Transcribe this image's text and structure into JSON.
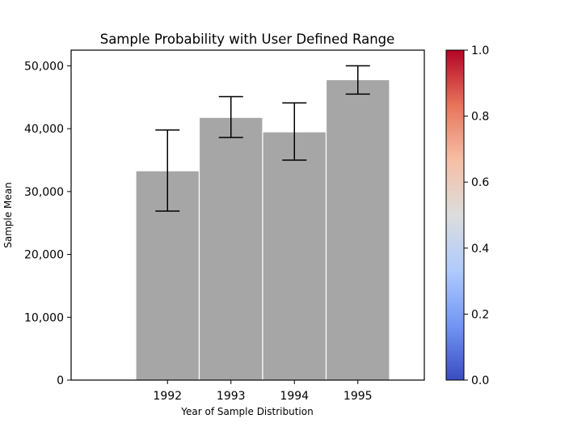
{
  "chart_data": {
    "type": "bar",
    "title": "Sample Probability with User Defined Range",
    "xlabel": "Year of Sample Distribution",
    "ylabel": "Sample Mean",
    "categories": [
      "1992",
      "1993",
      "1994",
      "1995"
    ],
    "values": [
      33300,
      41800,
      39500,
      47800
    ],
    "error_low": [
      26900,
      38600,
      35000,
      45500
    ],
    "error_high": [
      39800,
      45100,
      44100,
      50000
    ],
    "ylim": [
      0,
      52500
    ],
    "yticks": [
      0,
      10000,
      20000,
      30000,
      40000,
      50000
    ],
    "ytick_labels": [
      "0",
      "10,000",
      "20,000",
      "30,000",
      "40,000",
      "50,000"
    ],
    "bar_color": "#a6a6a6",
    "grid": false,
    "legend": "none",
    "colorbar": {
      "colormap": "coolwarm",
      "range": [
        0.0,
        1.0
      ],
      "ticks": [
        "0.0",
        "0.2",
        "0.4",
        "0.6",
        "0.8",
        "1.0"
      ],
      "colors": [
        "#3b4cc0",
        "#7396f5",
        "#b0cbfc",
        "#dcdddd",
        "#f6bfa6",
        "#e7745b",
        "#b40426"
      ]
    }
  }
}
